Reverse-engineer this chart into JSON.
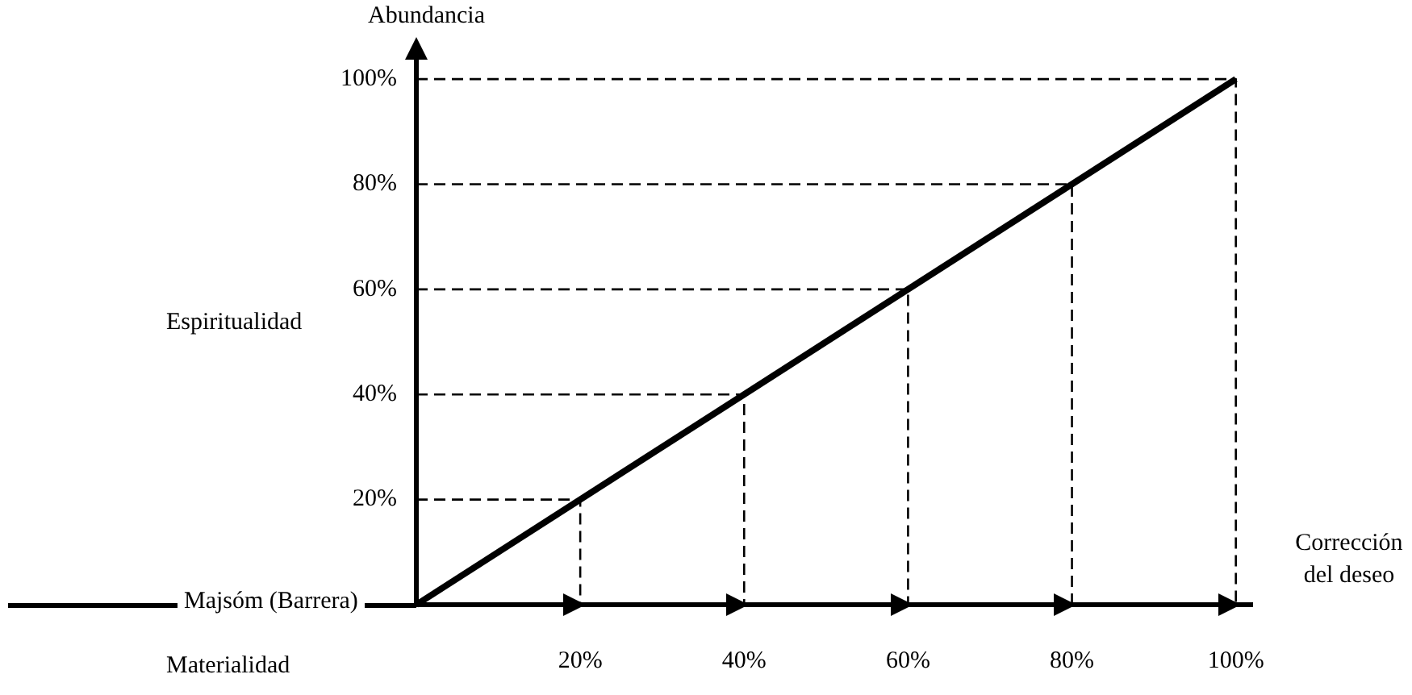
{
  "chart_data": {
    "type": "line",
    "xlabel": "Corrección del deseo",
    "ylabel": "Abundancia",
    "annotations": [
      "Espiritualidad",
      "Materialidad",
      "Majsóm (Barrera)"
    ],
    "xlim": [
      0,
      102
    ],
    "ylim": [
      0,
      104
    ],
    "xticks": [
      {
        "value": 20,
        "label": "20%"
      },
      {
        "value": 40,
        "label": "40%"
      },
      {
        "value": 60,
        "label": "60%"
      },
      {
        "value": 80,
        "label": "80%"
      },
      {
        "value": 100,
        "label": "100%"
      }
    ],
    "yticks": [
      {
        "value": 20,
        "label": "20%"
      },
      {
        "value": 40,
        "label": "40%"
      },
      {
        "value": 60,
        "label": "60%"
      },
      {
        "value": 80,
        "label": "80%"
      },
      {
        "value": 100,
        "label": "100%"
      }
    ],
    "grid": false,
    "legend": false,
    "marker": "none",
    "line_style": "solid",
    "series": [
      {
        "color": "#000000",
        "x": [
          0,
          100
        ],
        "values": [
          0,
          100
        ]
      },
      {
        "color": "#000000",
        "line_style": "dashed",
        "x": [
          0,
          20,
          20
        ],
        "values": [
          20,
          20,
          0
        ]
      },
      {
        "color": "#000000",
        "line_style": "dashed",
        "x": [
          0,
          40,
          40
        ],
        "values": [
          40,
          40,
          0
        ]
      },
      {
        "color": "#000000",
        "line_style": "dashed",
        "x": [
          0,
          60,
          60
        ],
        "values": [
          60,
          60,
          0
        ]
      },
      {
        "color": "#000000",
        "line_style": "dashed",
        "x": [
          0,
          80,
          80
        ],
        "values": [
          80,
          80,
          0
        ]
      },
      {
        "color": "#000000",
        "line_style": "dashed",
        "x": [
          0,
          100,
          100
        ],
        "values": [
          100,
          100,
          0
        ]
      }
    ]
  }
}
